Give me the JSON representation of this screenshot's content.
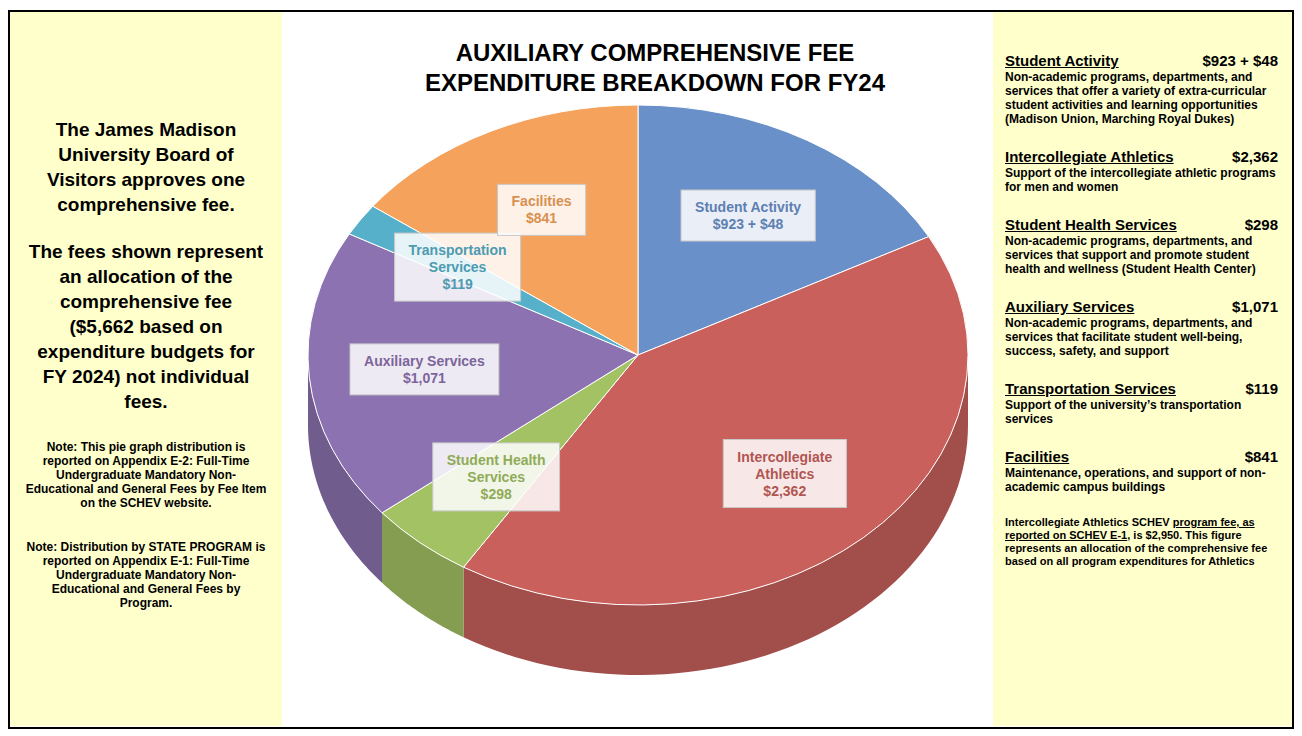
{
  "chart_data": {
    "type": "pie",
    "title": "AUXILIARY COMPREHENSIVE FEE EXPENDITURE BREAKDOWN FOR FY24",
    "categories": [
      "Student Activity",
      "Intercollegiate Athletics",
      "Student Health Services",
      "Auxiliary Services",
      "Transportation Services",
      "Facilities"
    ],
    "values": [
      923,
      2362,
      298,
      1071,
      119,
      841
    ],
    "added_values": [
      48,
      null,
      null,
      null,
      null,
      null
    ],
    "value_labels": [
      "$923 + $48",
      "$2,362",
      "$298",
      "$1,071",
      "$119",
      "$841"
    ],
    "colors": [
      "#6a90c9",
      "#c9605c",
      "#a3c263",
      "#8c72b0",
      "#56b0c9",
      "#f5a35c"
    ],
    "data_labels": true
  },
  "left_panel": {
    "statements": [
      "The James Madison University Board of Visitors approves one comprehensive fee.",
      "The fees shown represent an allocation of the comprehensive fee ($5,662 based on expenditure budgets for FY 2024) not individual fees."
    ],
    "notes": [
      "Note:  This pie graph distribution is reported on Appendix E-2: Full-Time Undergraduate Mandatory Non-Educational and General Fees by Fee Item on the SCHEV website.",
      "Note:  Distribution by STATE PROGRAM is reported on Appendix E-1: Full-Time Undergraduate Mandatory Non- Educational and General Fees by Program."
    ]
  },
  "right_panel": {
    "descriptions": [
      "Non-academic programs, departments, and services that offer a variety of extra-curricular student activities and learning opportunities (Madison Union, Marching Royal Dukes)",
      "Support of the intercollegiate athletic programs for men and women",
      "Non-academic programs, departments, and services that support and promote student health and wellness (Student Health Center)",
      "Non-academic programs, departments, and services that facilitate student well-being, success, safety, and support",
      "Support of the university’s transportation services",
      "Maintenance, operations, and support of non- academic campus buildings"
    ],
    "athletics_note": {
      "before": "Intercollegiate Athletics SCHEV ",
      "underlined": "program fee, as reported on SCHEV E-1",
      "after": ", is $2,950.  This figure represents an allocation of the comprehensive fee based on all program expenditures for Athletics"
    }
  }
}
